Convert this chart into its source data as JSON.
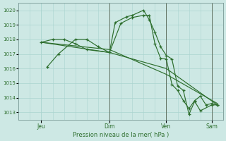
{
  "bg_color": "#cde8e4",
  "grid_color": "#aad4cf",
  "line_color": "#2d6e2d",
  "vline_color": "#607060",
  "xlabel": "Pression niveau de la mer( hPa )",
  "ylim": [
    1012.5,
    1020.5
  ],
  "yticks": [
    1013,
    1014,
    1015,
    1016,
    1017,
    1018,
    1019,
    1020
  ],
  "xlim": [
    0,
    18
  ],
  "day_ticks": [
    2,
    8,
    13,
    17
  ],
  "day_labels": [
    "Jeu",
    "Dim",
    "Ven",
    "Sam"
  ],
  "vline_positions": [
    8,
    13,
    17
  ],
  "line1_x": [
    2.5,
    3.5,
    5,
    6,
    7,
    8,
    8.5,
    9.5,
    10,
    11,
    11.5,
    12,
    12.5,
    13,
    13.5,
    14,
    14.5,
    15,
    15.5,
    16,
    17,
    17.5
  ],
  "line1_y": [
    1016.1,
    1017.0,
    1018.0,
    1018.0,
    1017.5,
    1017.1,
    1019.15,
    1019.55,
    1019.65,
    1020.0,
    1019.35,
    1018.5,
    1017.5,
    1016.9,
    1016.65,
    1014.8,
    1014.5,
    1012.85,
    1013.75,
    1013.1,
    1013.5,
    1013.5
  ],
  "line2_x": [
    2,
    3,
    4,
    5,
    6,
    8,
    9,
    10,
    11,
    11.5,
    12,
    12.5,
    13,
    13.5,
    14,
    14.5,
    15,
    15.5,
    16,
    16.5,
    17,
    17.5
  ],
  "line2_y": [
    1017.8,
    1018.0,
    1018.0,
    1017.7,
    1017.3,
    1017.1,
    1019.1,
    1019.5,
    1019.65,
    1019.65,
    1017.7,
    1016.7,
    1016.65,
    1014.9,
    1014.5,
    1013.8,
    1013.25,
    1013.8,
    1014.1,
    1013.5,
    1013.6,
    1013.5
  ],
  "line3_x": [
    2,
    8,
    13,
    17.5
  ],
  "line3_y": [
    1017.8,
    1017.1,
    1016.0,
    1013.5
  ],
  "line4_x": [
    2,
    8,
    13,
    17.5
  ],
  "line4_y": [
    1017.8,
    1017.3,
    1015.6,
    1013.6
  ]
}
